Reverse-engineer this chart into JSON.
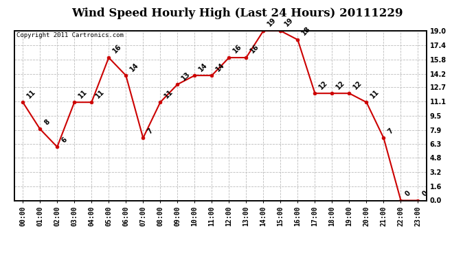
{
  "title": "Wind Speed Hourly High (Last 24 Hours) 20111229",
  "copyright": "Copyright 2011 Cartronics.com",
  "hours": [
    "00:00",
    "01:00",
    "02:00",
    "03:00",
    "04:00",
    "05:00",
    "06:00",
    "07:00",
    "08:00",
    "09:00",
    "10:00",
    "11:00",
    "12:00",
    "13:00",
    "14:00",
    "15:00",
    "16:00",
    "17:00",
    "18:00",
    "19:00",
    "20:00",
    "21:00",
    "22:00",
    "23:00"
  ],
  "values": [
    11,
    8,
    6,
    11,
    11,
    16,
    14,
    7,
    11,
    13,
    14,
    14,
    16,
    16,
    19,
    19,
    18,
    12,
    12,
    12,
    11,
    7,
    0,
    0
  ],
  "line_color": "#cc0000",
  "marker_color": "#cc0000",
  "bg_color": "#ffffff",
  "plot_bg_color": "#ffffff",
  "grid_color": "#bbbbbb",
  "label_color": "#000000",
  "ylim": [
    0.0,
    19.0
  ],
  "yticks": [
    0.0,
    1.6,
    3.2,
    4.8,
    6.3,
    7.9,
    9.5,
    11.1,
    12.7,
    14.2,
    15.8,
    17.4,
    19.0
  ],
  "title_fontsize": 12,
  "tick_fontsize": 7,
  "annot_fontsize": 7,
  "copyright_fontsize": 6.5
}
